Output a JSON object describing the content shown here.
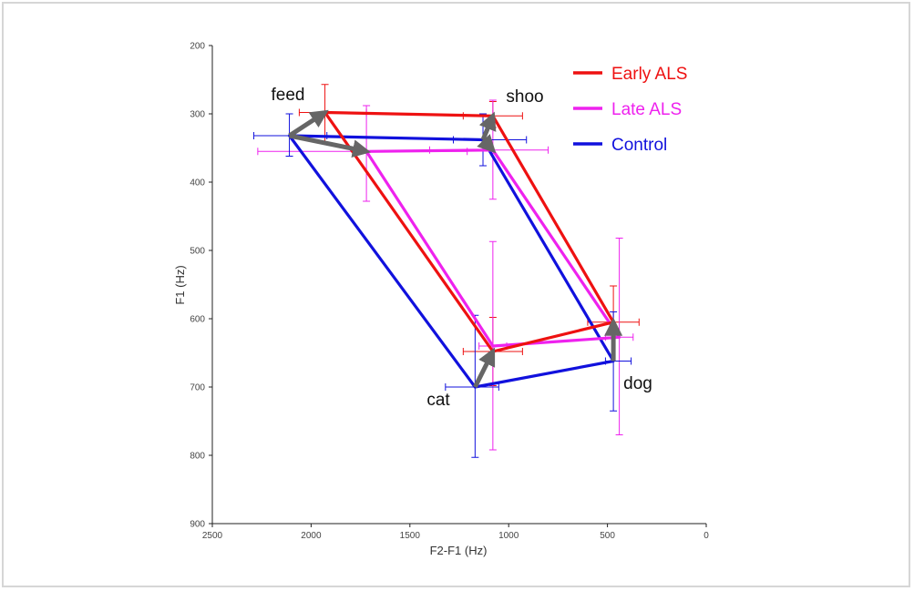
{
  "chart_data": {
    "type": "line",
    "xlabel": "F2-F1 (Hz)",
    "ylabel": "F1 (Hz)",
    "xlim": [
      2500,
      0
    ],
    "ylim": [
      200,
      900
    ],
    "x_ticks": [
      2500,
      2000,
      1500,
      1000,
      500,
      0
    ],
    "y_ticks": [
      200,
      300,
      400,
      500,
      600,
      700,
      800,
      900
    ],
    "vowel_order": [
      "feed",
      "shoo",
      "dog",
      "cat"
    ],
    "vowels": [
      {
        "label": "feed"
      },
      {
        "label": "shoo"
      },
      {
        "label": "dog"
      },
      {
        "label": "cat"
      }
    ],
    "series": [
      {
        "name": "Early ALS",
        "color": "#ee1111",
        "points": [
          {
            "vowel": "feed",
            "x": 1930,
            "y": 298,
            "x_err": [
              2060,
              1720
            ],
            "y_err": [
              257,
              343
            ]
          },
          {
            "vowel": "shoo",
            "x": 1080,
            "y": 303,
            "x_err": [
              1230,
              930
            ],
            "y_err": [
              282,
              320
            ]
          },
          {
            "vowel": "dog",
            "x": 470,
            "y": 605,
            "x_err": [
              600,
              340
            ],
            "y_err": [
              552,
              662
            ]
          },
          {
            "vowel": "cat",
            "x": 1080,
            "y": 648,
            "x_err": [
              1230,
              930
            ],
            "y_err": [
              598,
              698
            ]
          }
        ]
      },
      {
        "name": "Late ALS",
        "color": "#ee22ee",
        "points": [
          {
            "vowel": "feed",
            "x": 1720,
            "y": 355,
            "x_err": [
              2270,
              1210
            ],
            "y_err": [
              288,
              428
            ]
          },
          {
            "vowel": "shoo",
            "x": 1080,
            "y": 353,
            "x_err": [
              1400,
              800
            ],
            "y_err": [
              280,
              425
            ]
          },
          {
            "vowel": "dog",
            "x": 440,
            "y": 627,
            "x_err": [
              510,
              370
            ],
            "y_err": [
              482,
              770
            ]
          },
          {
            "vowel": "cat",
            "x": 1080,
            "y": 640,
            "x_err": [
              1150,
              1010
            ],
            "y_err": [
              487,
              792
            ]
          }
        ]
      },
      {
        "name": "Control",
        "color": "#1111dd",
        "points": [
          {
            "vowel": "feed",
            "x": 2110,
            "y": 332,
            "x_err": [
              2290,
              1920
            ],
            "y_err": [
              300,
              362
            ]
          },
          {
            "vowel": "shoo",
            "x": 1130,
            "y": 338,
            "x_err": [
              1280,
              910
            ],
            "y_err": [
              300,
              376
            ]
          },
          {
            "vowel": "dog",
            "x": 470,
            "y": 662,
            "x_err": [
              510,
              380
            ],
            "y_err": [
              590,
              735
            ]
          },
          {
            "vowel": "cat",
            "x": 1170,
            "y": 700,
            "x_err": [
              1320,
              1050
            ],
            "y_err": [
              595,
              803
            ]
          }
        ]
      }
    ],
    "shift_arrows": [
      {
        "from": [
          2110,
          332
        ],
        "to": [
          1930,
          298
        ]
      },
      {
        "from": [
          2110,
          332
        ],
        "to": [
          1720,
          355
        ]
      },
      {
        "from": [
          1130,
          338
        ],
        "to": [
          1080,
          303
        ]
      },
      {
        "from": [
          1130,
          338
        ],
        "to": [
          1080,
          353
        ]
      },
      {
        "from": [
          470,
          662
        ],
        "to": [
          470,
          605
        ]
      },
      {
        "from": [
          1170,
          700
        ],
        "to": [
          1080,
          648
        ]
      }
    ],
    "arrow_color": "#666666",
    "legend_position": "top-right",
    "grid": false
  }
}
